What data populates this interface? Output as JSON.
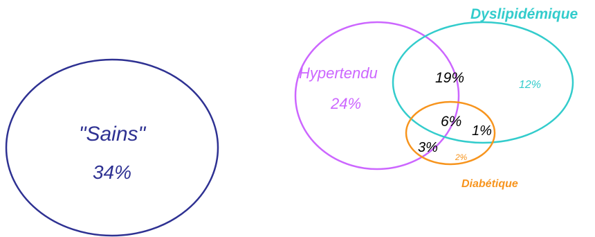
{
  "sains": {
    "label": "\"Sains\"",
    "pct": "34%",
    "color": "#2e3192"
  },
  "hypertendu": {
    "label": "Hypertendu",
    "pct": "24%",
    "color": "#cc66ff"
  },
  "dyslipidemique": {
    "label": "Dyslipidémique",
    "pct": "12%",
    "color": "#33cccc"
  },
  "diabetique": {
    "label": "Diabétique",
    "pct": "2%",
    "color": "#f7941d"
  },
  "overlaps": {
    "hyper_dys": "19%",
    "all_three": "6%",
    "dys_diab": "1%",
    "hyper_diab": "3%"
  },
  "overlap_color": "#000000"
}
